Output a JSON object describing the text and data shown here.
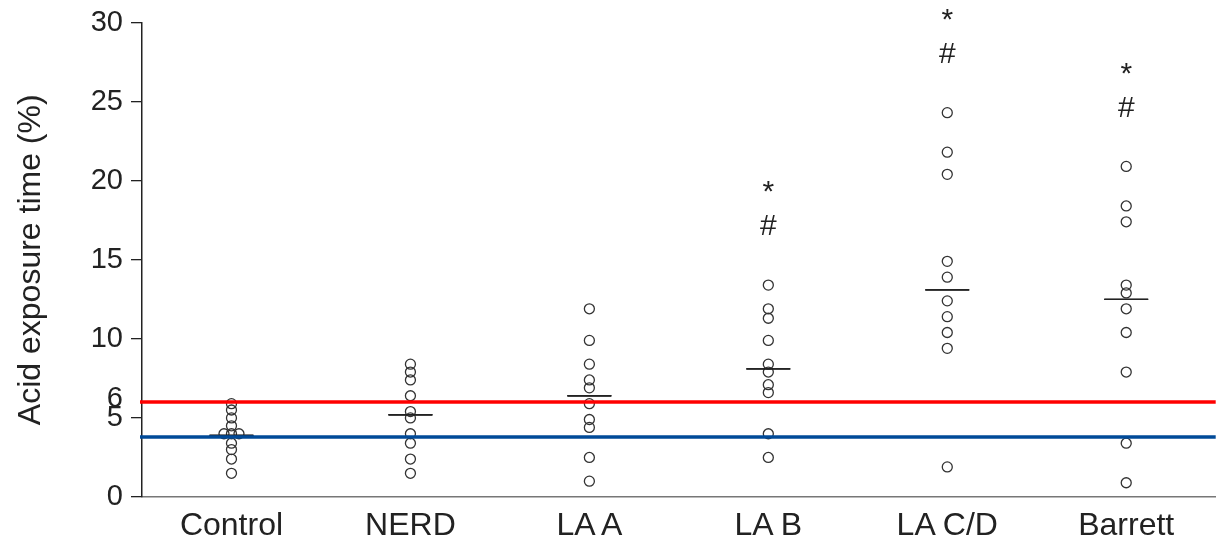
{
  "chart_data": {
    "type": "scatter",
    "ylabel": "Acid exposure time (%)",
    "categories": [
      "Control",
      "NERD",
      "LA A",
      "LA B",
      "LA C/D",
      "Barrett"
    ],
    "ylim": [
      0,
      30
    ],
    "yticks": [
      0,
      5,
      10,
      15,
      20,
      25,
      30
    ],
    "grid": false,
    "legend": false,
    "marker": "circle",
    "series": [
      {
        "color": "#333333",
        "x": [
          "Control",
          "Control",
          "Control",
          "Control",
          "Control",
          "Control",
          "Control",
          "Control",
          "Control",
          "Control",
          "Control",
          "NERD",
          "NERD",
          "NERD",
          "NERD",
          "NERD",
          "NERD",
          "NERD",
          "NERD",
          "NERD",
          "NERD",
          "LA A",
          "LA A",
          "LA A",
          "LA A",
          "LA A",
          "LA A",
          "LA A",
          "LA A",
          "LA A",
          "LA A",
          "LA B",
          "LA B",
          "LA B",
          "LA B",
          "LA B",
          "LA B",
          "LA B",
          "LA B",
          "LA B",
          "LA B",
          "LA C/D",
          "LA C/D",
          "LA C/D",
          "LA C/D",
          "LA C/D",
          "LA C/D",
          "LA C/D",
          "LA C/D",
          "LA C/D",
          "LA C/D",
          "Barrett",
          "Barrett",
          "Barrett",
          "Barrett",
          "Barrett",
          "Barrett",
          "Barrett",
          "Barrett",
          "Barrett",
          "Barrett"
        ],
        "values": [
          5.9,
          5.5,
          5.0,
          4.5,
          4.0,
          4.0,
          4.0,
          3.4,
          3.0,
          2.4,
          1.5,
          8.4,
          7.9,
          7.4,
          6.4,
          5.4,
          5.0,
          4.0,
          3.4,
          2.4,
          1.5,
          11.9,
          9.9,
          8.4,
          7.4,
          6.9,
          5.9,
          4.9,
          4.4,
          2.5,
          1.0,
          13.4,
          11.9,
          11.3,
          9.9,
          8.4,
          7.9,
          7.1,
          6.6,
          4.0,
          2.5,
          24.3,
          21.8,
          20.4,
          14.9,
          13.9,
          12.4,
          11.4,
          10.4,
          9.4,
          1.9,
          20.9,
          18.4,
          17.4,
          13.4,
          12.9,
          11.9,
          10.4,
          7.9,
          3.4,
          0.9
        ]
      },
      {
        "type": "box",
        "color": "#222222",
        "boxes": [
          {
            "low": 3.9,
            "q1": 3.9,
            "median": 3.9,
            "q3": 3.9,
            "high": 3.9
          },
          {
            "low": 5.2,
            "q1": 5.2,
            "median": 5.2,
            "q3": 5.2,
            "high": 5.2
          },
          {
            "low": 6.4,
            "q1": 6.4,
            "median": 6.4,
            "q3": 6.4,
            "high": 6.4
          },
          {
            "low": 8.1,
            "q1": 8.1,
            "median": 8.1,
            "q3": 8.1,
            "high": 8.1
          },
          {
            "low": 13.1,
            "q1": 13.1,
            "median": 13.1,
            "q3": 13.1,
            "high": 13.1
          },
          {
            "low": 12.5,
            "q1": 12.5,
            "median": 12.5,
            "q3": 12.5,
            "high": 12.5
          }
        ]
      }
    ],
    "ref_lines": [
      {
        "axis": "y",
        "value": 6,
        "label": "6",
        "color": "#ff0000"
      },
      {
        "axis": "y",
        "value": 3.8,
        "color": "#004a98"
      }
    ],
    "annotations": [
      "#",
      "*",
      "#",
      "*",
      "#",
      "*"
    ]
  }
}
